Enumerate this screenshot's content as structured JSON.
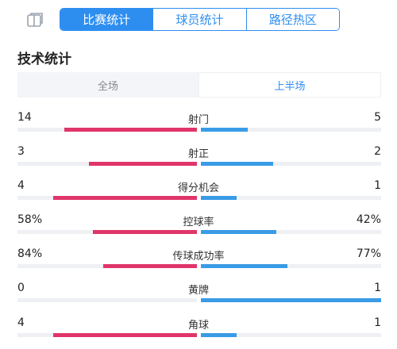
{
  "header": {
    "tabs": [
      {
        "label": "比赛统计",
        "active": true
      },
      {
        "label": "球员统计",
        "active": false
      },
      {
        "label": "路径热区",
        "active": false
      }
    ]
  },
  "section_title": "技术统计",
  "period_toggle": {
    "options": [
      {
        "label": "全场",
        "active": false
      },
      {
        "label": "上半场",
        "active": true
      }
    ]
  },
  "colors": {
    "home": "#e0356b",
    "away": "#3a9be6",
    "accent": "#2e8ef0"
  },
  "stats": [
    {
      "name": "射门",
      "home": "14",
      "away": "5",
      "home_ratio": 0.74,
      "away_ratio": 0.26
    },
    {
      "name": "射正",
      "home": "3",
      "away": "2",
      "home_ratio": 0.6,
      "away_ratio": 0.4
    },
    {
      "name": "得分机会",
      "home": "4",
      "away": "1",
      "home_ratio": 0.8,
      "away_ratio": 0.2
    },
    {
      "name": "控球率",
      "home": "58%",
      "away": "42%",
      "home_ratio": 0.58,
      "away_ratio": 0.42
    },
    {
      "name": "传球成功率",
      "home": "84%",
      "away": "77%",
      "home_ratio": 0.52,
      "away_ratio": 0.48
    },
    {
      "name": "黄牌",
      "home": "0",
      "away": "1",
      "home_ratio": 0.0,
      "away_ratio": 1.0
    },
    {
      "name": "角球",
      "home": "4",
      "away": "1",
      "home_ratio": 0.8,
      "away_ratio": 0.2
    }
  ]
}
